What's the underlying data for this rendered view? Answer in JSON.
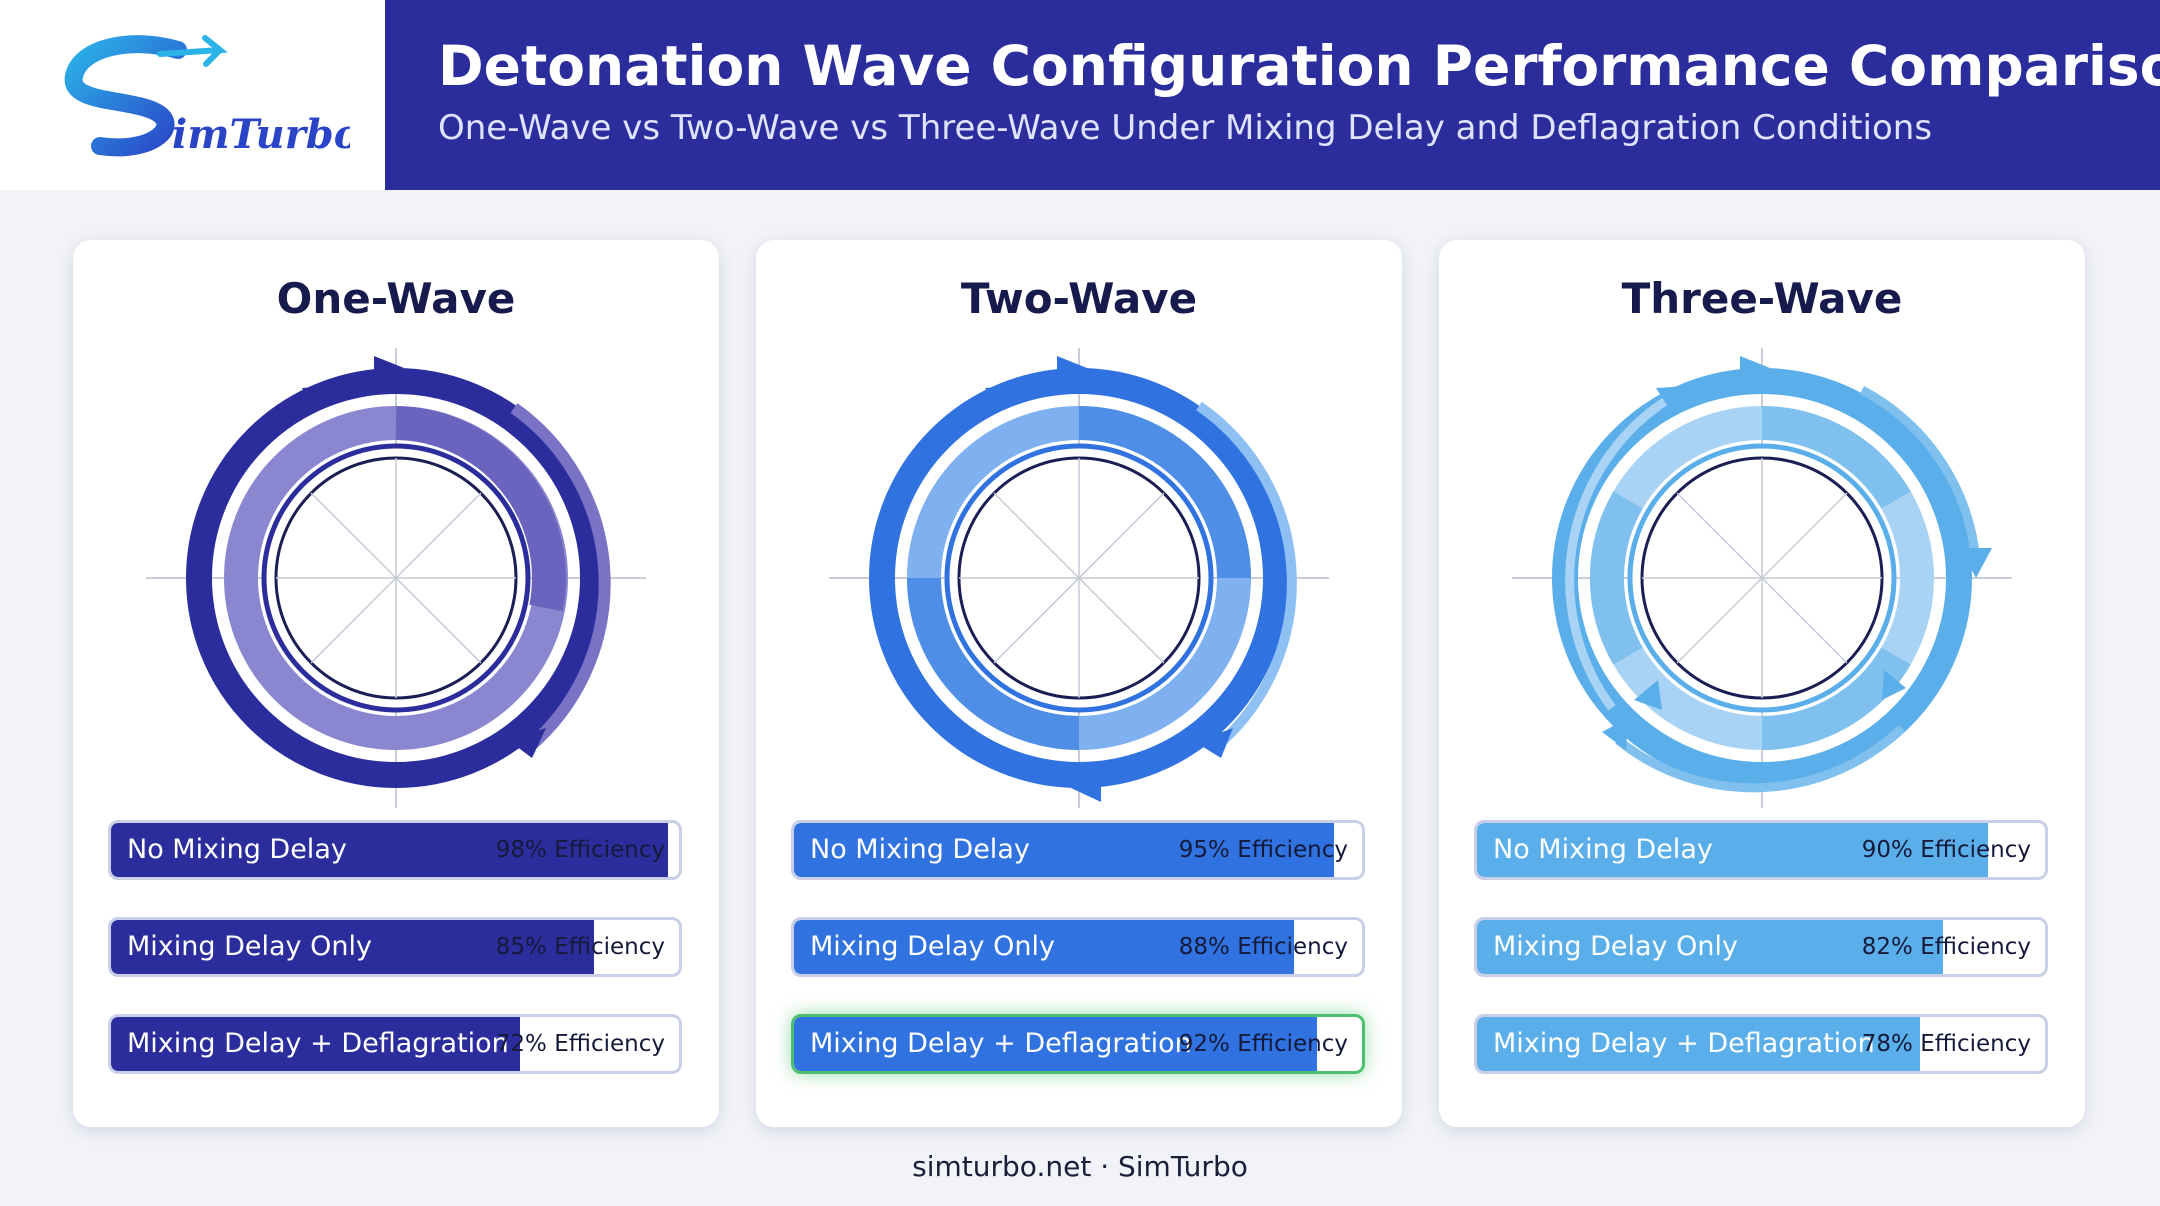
{
  "header": {
    "brand": "SimTurbo",
    "title": "Detonation Wave Configuration Performance Comparison",
    "subtitle": "One-Wave vs Two-Wave vs Three-Wave Under Mixing Delay and Deflagration Conditions"
  },
  "colors": {
    "header_band": "#2a2d9b",
    "one_wave": "#2a2d9b",
    "two_wave": "#2f72e0",
    "three_wave": "#5aaeea",
    "highlight": "#4cc06e"
  },
  "cards": [
    {
      "title": "One-Wave",
      "bars": [
        {
          "label": "No Mixing Delay",
          "value_text": "98% Efficiency",
          "efficiency": 98
        },
        {
          "label": "Mixing Delay Only",
          "value_text": "85% Efficiency",
          "efficiency": 85
        },
        {
          "label": "Mixing Delay + Deflagration",
          "value_text": "72% Efficiency",
          "efficiency": 72
        }
      ]
    },
    {
      "title": "Two-Wave",
      "bars": [
        {
          "label": "No Mixing Delay",
          "value_text": "95% Efficiency",
          "efficiency": 95
        },
        {
          "label": "Mixing Delay Only",
          "value_text": "88% Efficiency",
          "efficiency": 88
        },
        {
          "label": "Mixing Delay + Deflagration",
          "value_text": "92% Efficiency",
          "efficiency": 92,
          "highlighted": true
        }
      ]
    },
    {
      "title": "Three-Wave",
      "bars": [
        {
          "label": "No Mixing Delay",
          "value_text": "90% Efficiency",
          "efficiency": 90
        },
        {
          "label": "Mixing Delay Only",
          "value_text": "82% Efficiency",
          "efficiency": 82
        },
        {
          "label": "Mixing Delay + Deflagration",
          "value_text": "78% Efficiency",
          "efficiency": 78
        }
      ]
    }
  ],
  "footer": "simturbo.net · SimTurbo"
}
